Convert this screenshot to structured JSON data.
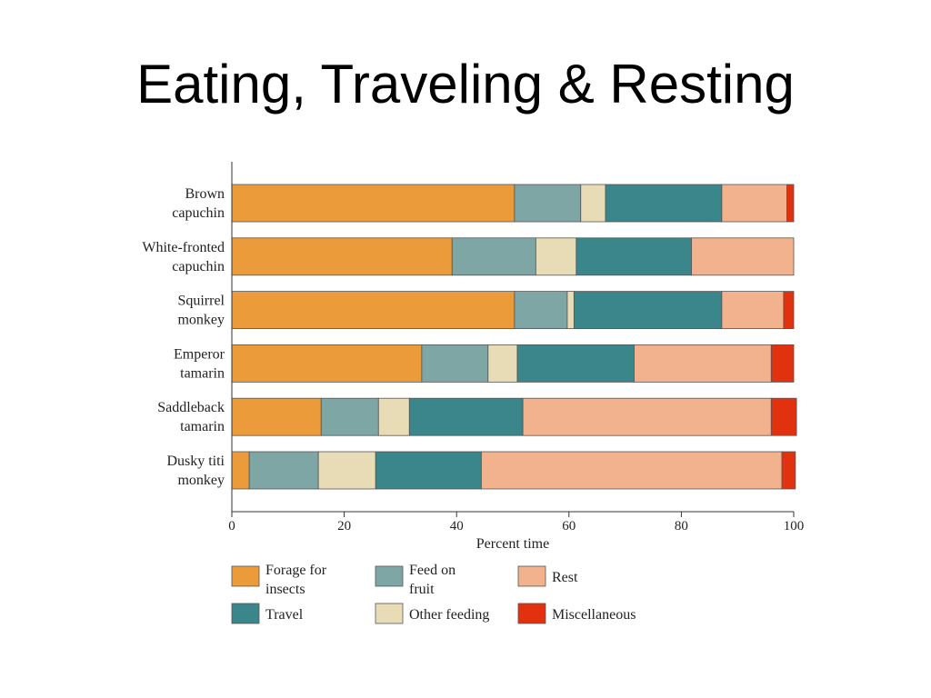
{
  "slide": {
    "title": "Eating, Traveling & Resting"
  },
  "chart_data": {
    "type": "bar",
    "orientation": "horizontal",
    "stacked": true,
    "categories": [
      [
        "Brown",
        "capuchin"
      ],
      [
        "White-fronted",
        "capuchin"
      ],
      [
        "Squirrel",
        "monkey"
      ],
      [
        "Emperor",
        "tamarin"
      ],
      [
        "Saddleback",
        "tamarin"
      ],
      [
        "Dusky titi",
        "monkey"
      ]
    ],
    "series": [
      {
        "name": "Forage for insects",
        "label_lines": [
          "Forage for",
          "insects"
        ],
        "color": "#ec9b3b",
        "values": [
          50.3,
          39.2,
          50.3,
          33.8,
          15.9,
          3.1
        ]
      },
      {
        "name": "Feed on fruit",
        "label_lines": [
          "Feed on",
          "fruit"
        ],
        "color": "#7ea6a5",
        "values": [
          11.8,
          14.9,
          9.4,
          11.8,
          10.2,
          12.3
        ]
      },
      {
        "name": "Other feeding",
        "label_lines": [
          "Other feeding"
        ],
        "color": "#e8dcb6",
        "values": [
          4.4,
          7.2,
          1.2,
          5.2,
          5.5,
          10.2
        ]
      },
      {
        "name": "Travel",
        "label_lines": [
          "Travel"
        ],
        "color": "#3a868a",
        "values": [
          20.7,
          20.5,
          26.3,
          20.8,
          20.2,
          18.8
        ]
      },
      {
        "name": "Rest",
        "label_lines": [
          "Rest"
        ],
        "color": "#f2b28d",
        "values": [
          11.6,
          18.2,
          11.0,
          24.4,
          44.2,
          53.5
        ]
      },
      {
        "name": "Miscellaneous",
        "label_lines": [
          "Miscellaneous"
        ],
        "color": "#e2310f",
        "values": [
          1.2,
          0.0,
          1.8,
          4.0,
          4.5,
          2.4
        ]
      }
    ],
    "legend_order": [
      "Forage for insects",
      "Feed on fruit",
      "Rest",
      "Travel",
      "Other feeding",
      "Miscellaneous"
    ],
    "xlabel": "Percent time",
    "ylabel": "",
    "xlim": [
      0,
      100
    ],
    "xticks": [
      0,
      20,
      40,
      60,
      80,
      100
    ],
    "grid": false,
    "legend_position": "bottom"
  }
}
